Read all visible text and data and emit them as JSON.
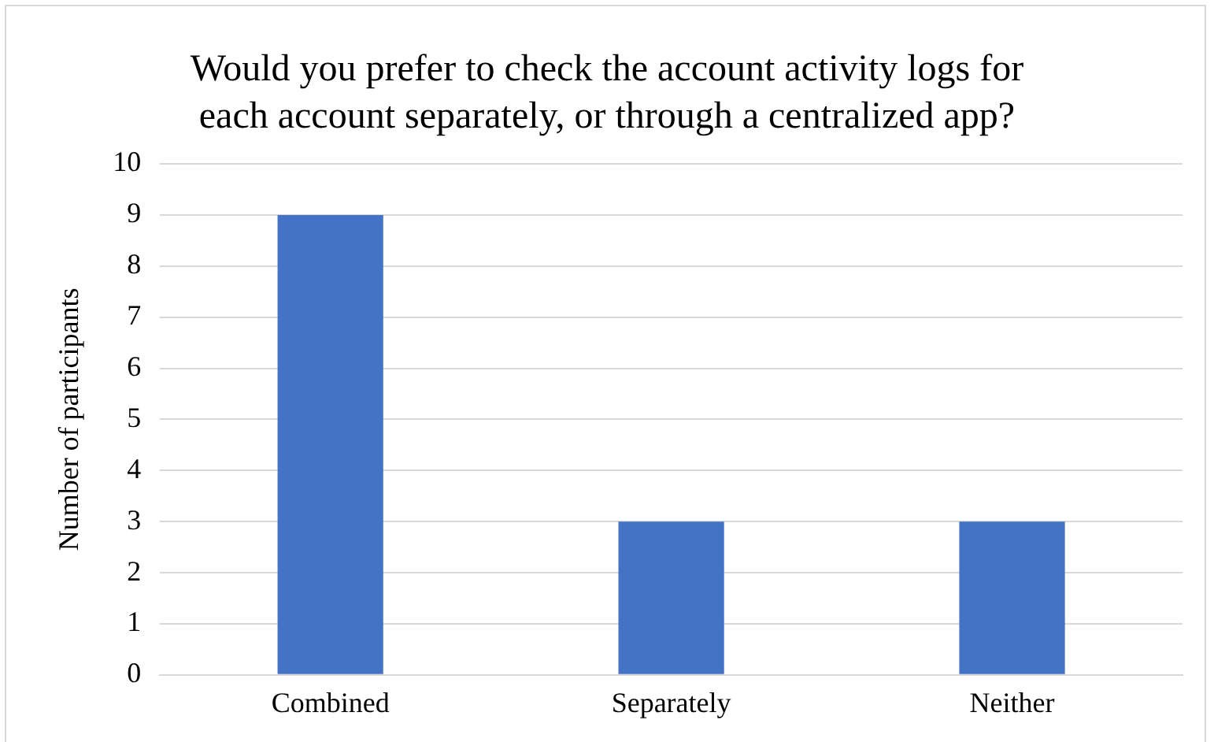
{
  "chart_data": {
    "type": "bar",
    "title": "Would you prefer to check the account activity logs for each account separately, or through a centralized app?",
    "ylabel": "Number of participants",
    "categories": [
      "Combined",
      "Separately",
      "Neither"
    ],
    "values": [
      9,
      3,
      3
    ],
    "color": "#4472c4",
    "ylim": [
      0,
      10
    ],
    "yticks": [
      0,
      1,
      2,
      3,
      4,
      5,
      6,
      7,
      8,
      9,
      10
    ],
    "grid": "y",
    "legend": false
  }
}
